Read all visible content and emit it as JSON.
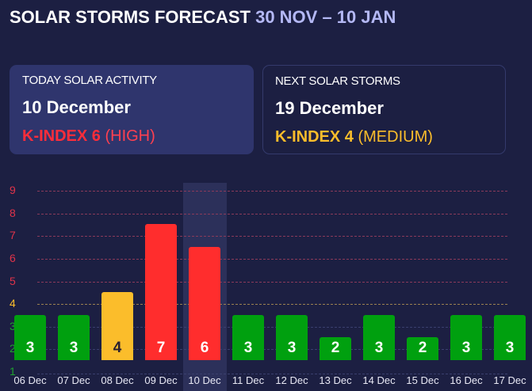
{
  "header": {
    "title": "SOLAR STORMS FORECAST",
    "range": "30 NOV – 10 JAN"
  },
  "today": {
    "label": "TODAY SOLAR ACTIVITY",
    "date": "10 December",
    "kindex": "K-INDEX 6",
    "level": "(HIGH)"
  },
  "next": {
    "label": "NEXT SOLAR STORMS",
    "date": "19 December",
    "kindex": "K-INDEX 4",
    "level": "(MEDIUM)"
  },
  "colors": {
    "low": "#00a00f",
    "medium": "#fbbd2b",
    "high": "#ff2d2d",
    "background": "#1c1f42"
  },
  "chart_data": {
    "type": "bar",
    "categories": [
      "06 Dec",
      "07 Dec",
      "08 Dec",
      "09 Dec",
      "10 Dec",
      "11 Dec",
      "12 Dec",
      "13 Dec",
      "14 Dec",
      "15 Dec",
      "16 Dec",
      "17 Dec"
    ],
    "values": [
      3,
      3,
      4,
      7,
      6,
      3,
      3,
      2,
      3,
      2,
      3,
      3
    ],
    "highlighted": "10 Dec",
    "yticks": [
      "1",
      "2",
      "3",
      "4",
      "5",
      "6",
      "7",
      "8",
      "9"
    ],
    "ylim": [
      1,
      9
    ],
    "grid": true
  }
}
